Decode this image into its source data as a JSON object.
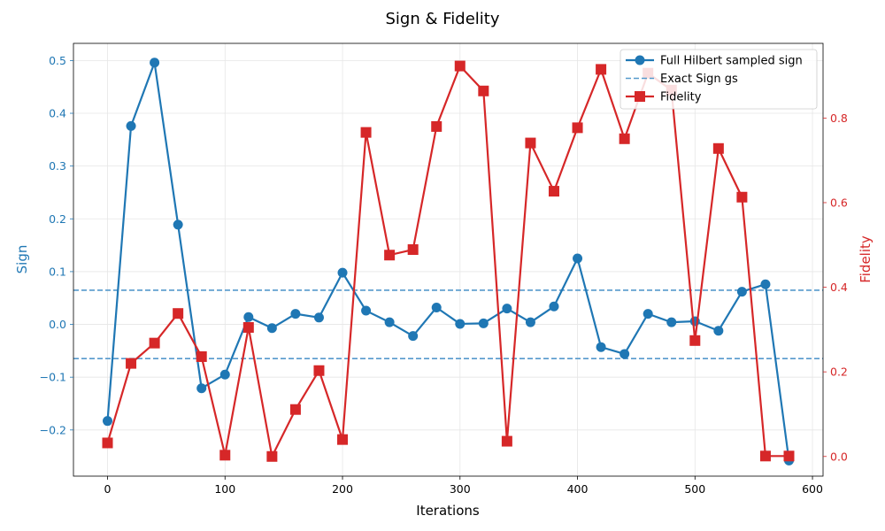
{
  "chart_data": {
    "type": "line",
    "title": "Sign & Fidelity",
    "xlabel": "Iterations",
    "ylabel_left": "Sign",
    "ylabel_right": "Fidelity",
    "xlim": [
      -29,
      609
    ],
    "ylim_left": [
      -0.2875,
      0.5325
    ],
    "ylim_right": [
      -0.0465,
      0.9765
    ],
    "x_ticks": [
      0,
      100,
      200,
      300,
      400,
      500,
      600
    ],
    "y_left_ticks": [
      -0.2,
      -0.1,
      0.0,
      0.1,
      0.2,
      0.3,
      0.4,
      0.5
    ],
    "y_left_tick_labels": [
      "−0.2",
      "−0.1",
      "0.0",
      "0.1",
      "0.2",
      "0.3",
      "0.4",
      "0.5"
    ],
    "y_right_ticks": [
      0.0,
      0.2,
      0.4,
      0.6,
      0.8
    ],
    "y_right_tick_labels": [
      "0.0",
      "0.2",
      "0.4",
      "0.6",
      "0.8"
    ],
    "grid": true,
    "legend_position": "top-right",
    "x": [
      0,
      20,
      40,
      60,
      80,
      100,
      120,
      140,
      160,
      180,
      200,
      220,
      240,
      260,
      280,
      300,
      320,
      340,
      360,
      380,
      400,
      420,
      440,
      460,
      480,
      500,
      520,
      540,
      560,
      580
    ],
    "series": [
      {
        "name": "Full Hilbert sampled sign",
        "axis": "left",
        "color": "#1f77b4",
        "marker": "circle",
        "values": [
          -0.183,
          0.376,
          0.496,
          0.189,
          -0.121,
          -0.095,
          0.014,
          -0.007,
          0.02,
          0.013,
          0.098,
          0.026,
          0.004,
          -0.022,
          0.032,
          0.001,
          0.002,
          0.03,
          0.004,
          0.034,
          0.125,
          -0.043,
          -0.056,
          0.02,
          0.004,
          0.006,
          -0.012,
          0.062,
          0.076,
          -0.258
        ]
      },
      {
        "name": "Fidelity",
        "axis": "right",
        "color": "#d62728",
        "marker": "square",
        "values": [
          0.032,
          0.22,
          0.268,
          0.338,
          0.236,
          0.003,
          0.305,
          0.0,
          0.111,
          0.203,
          0.04,
          0.766,
          0.476,
          0.489,
          0.78,
          0.923,
          0.864,
          0.036,
          0.741,
          0.627,
          0.777,
          0.915,
          0.751,
          0.906,
          0.866,
          0.274,
          0.728,
          0.613,
          0.001,
          0.001
        ]
      }
    ],
    "reference_lines": [
      {
        "name": "Exact Sign gs",
        "axis": "left",
        "color": "#5599cc",
        "style": "dashed",
        "values": [
          0.0648,
          -0.0648
        ]
      }
    ],
    "legend": [
      {
        "label": "Full Hilbert sampled sign",
        "kind": "line-circle",
        "color": "#1f77b4"
      },
      {
        "label": "Exact Sign gs",
        "kind": "dashed",
        "color": "#5599cc"
      },
      {
        "label": "Fidelity",
        "kind": "line-square",
        "color": "#d62728"
      }
    ],
    "colors": {
      "left_axis": "#1f77b4",
      "right_axis": "#d62728"
    }
  }
}
